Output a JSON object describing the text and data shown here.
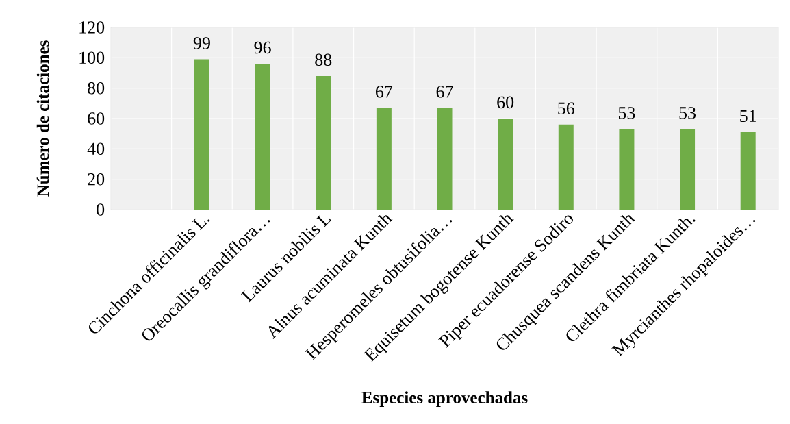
{
  "chart_data": {
    "type": "bar",
    "xlabel": "Especies aprovechadas",
    "ylabel": "Número de citaciones",
    "categories": [
      null,
      "Cinchona officinalis L.",
      "Oreocallis grandiflora…",
      "Laurus nobilis L",
      "Alnus acuminata Kunth",
      "Hesperomeles obtusifolia…",
      "Equisetum bogotense Kunth",
      "Piper ecuadorense Sodiro",
      "Chusquea scandens Kunth",
      "Clethra fimbriata Kunth.",
      "Myrcianthes rhopaloides…"
    ],
    "values": [
      null,
      99,
      96,
      88,
      67,
      67,
      60,
      56,
      53,
      53,
      51
    ],
    "color": "#70ad47",
    "ylim": [
      0,
      120
    ],
    "yticks": [
      0,
      20,
      40,
      60,
      80,
      100,
      120
    ],
    "grid": true,
    "data_labels": true
  }
}
